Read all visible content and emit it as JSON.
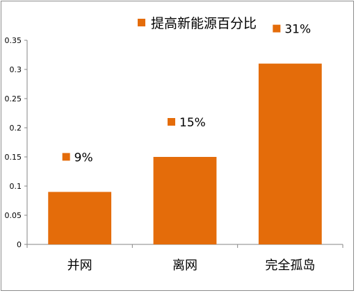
{
  "chart_data": {
    "type": "bar",
    "categories": [
      "并网",
      "离网",
      "完全孤岛"
    ],
    "series": [
      {
        "name": "提高新能源百分比",
        "values": [
          0.09,
          0.15,
          0.31
        ],
        "data_labels": [
          "9%",
          "15%",
          "31%"
        ]
      }
    ],
    "ylim": [
      0,
      0.35
    ],
    "yticks": [
      0,
      0.05,
      0.1,
      0.15,
      0.2,
      0.25,
      0.3,
      0.35
    ],
    "ytick_labels": [
      "0",
      "0.05",
      "0.1",
      "0.15",
      "0.2",
      "0.25",
      "0.3",
      "0.35"
    ],
    "grid": false,
    "legend_position": "top",
    "title": "",
    "xlabel": "",
    "ylabel": "",
    "bar_color": "#E46C0A",
    "axis_color": "#868686"
  }
}
